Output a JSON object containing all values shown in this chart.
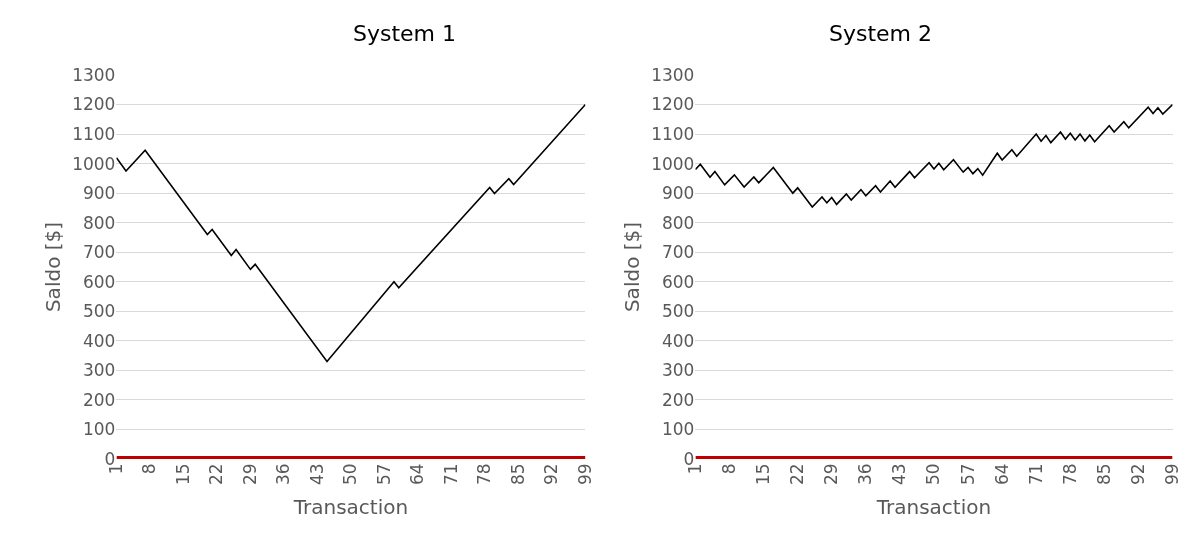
{
  "chart_data": [
    {
      "type": "line",
      "title": "System 1",
      "xlabel": "Transaction",
      "ylabel": "Saldo [$]",
      "xlim": [
        1,
        99
      ],
      "xticks": [
        1,
        8,
        15,
        22,
        29,
        36,
        43,
        50,
        57,
        64,
        71,
        78,
        85,
        92,
        99
      ],
      "ylim": [
        0,
        1300
      ],
      "yticks": [
        0,
        100,
        200,
        300,
        400,
        500,
        600,
        700,
        800,
        900,
        1000,
        1100,
        1200,
        1300
      ],
      "grid": "y",
      "marker": "none",
      "line_style": "solid",
      "series": [
        {
          "color": "#000000",
          "x": [
            1,
            3,
            7,
            20,
            21,
            25,
            26,
            29,
            30,
            45,
            59,
            60,
            79,
            80,
            83,
            84,
            99
          ],
          "values": [
            1020,
            975,
            1045,
            760,
            777,
            689,
            709,
            642,
            659,
            330,
            600,
            580,
            919,
            899,
            949,
            929,
            1200
          ]
        },
        {
          "color": "#c00000",
          "x": [
            1,
            99
          ],
          "values": [
            0,
            0
          ]
        }
      ]
    },
    {
      "type": "line",
      "title": "System 2",
      "xlabel": "Transaction",
      "ylabel": "Saldo [$]",
      "xlim": [
        1,
        99
      ],
      "xticks": [
        1,
        8,
        15,
        22,
        29,
        36,
        43,
        50,
        57,
        64,
        71,
        78,
        85,
        92,
        99
      ],
      "ylim": [
        0,
        1300
      ],
      "yticks": [
        0,
        100,
        200,
        300,
        400,
        500,
        600,
        700,
        800,
        900,
        1000,
        1100,
        1200,
        1300
      ],
      "grid": "y",
      "marker": "none",
      "line_style": "solid",
      "series": [
        {
          "color": "#000000",
          "x": [
            1,
            2,
            4,
            5,
            7,
            9,
            11,
            13,
            14,
            17,
            21,
            22,
            25,
            27,
            28,
            29,
            30,
            32,
            33,
            35,
            36,
            38,
            39,
            41,
            42,
            45,
            46,
            49,
            50,
            51,
            52,
            54,
            56,
            57,
            58,
            59,
            60,
            63,
            64,
            66,
            67,
            71,
            72,
            73,
            74,
            76,
            77,
            78,
            79,
            80,
            81,
            82,
            83,
            86,
            87,
            89,
            90,
            94,
            95,
            96,
            97,
            99
          ],
          "values": [
            980,
            998,
            954,
            973,
            928,
            962,
            921,
            955,
            935,
            987,
            900,
            918,
            853,
            887,
            867,
            885,
            862,
            897,
            877,
            912,
            891,
            925,
            904,
            941,
            920,
            973,
            952,
            1003,
            982,
            1001,
            979,
            1013,
            971,
            987,
            966,
            983,
            961,
            1035,
            1012,
            1047,
            1025,
            1100,
            1076,
            1095,
            1071,
            1107,
            1083,
            1103,
            1080,
            1100,
            1077,
            1097,
            1074,
            1128,
            1107,
            1142,
            1121,
            1191,
            1170,
            1189,
            1168,
            1200
          ]
        },
        {
          "color": "#c00000",
          "x": [
            1,
            99
          ],
          "values": [
            0,
            0
          ]
        }
      ]
    }
  ]
}
